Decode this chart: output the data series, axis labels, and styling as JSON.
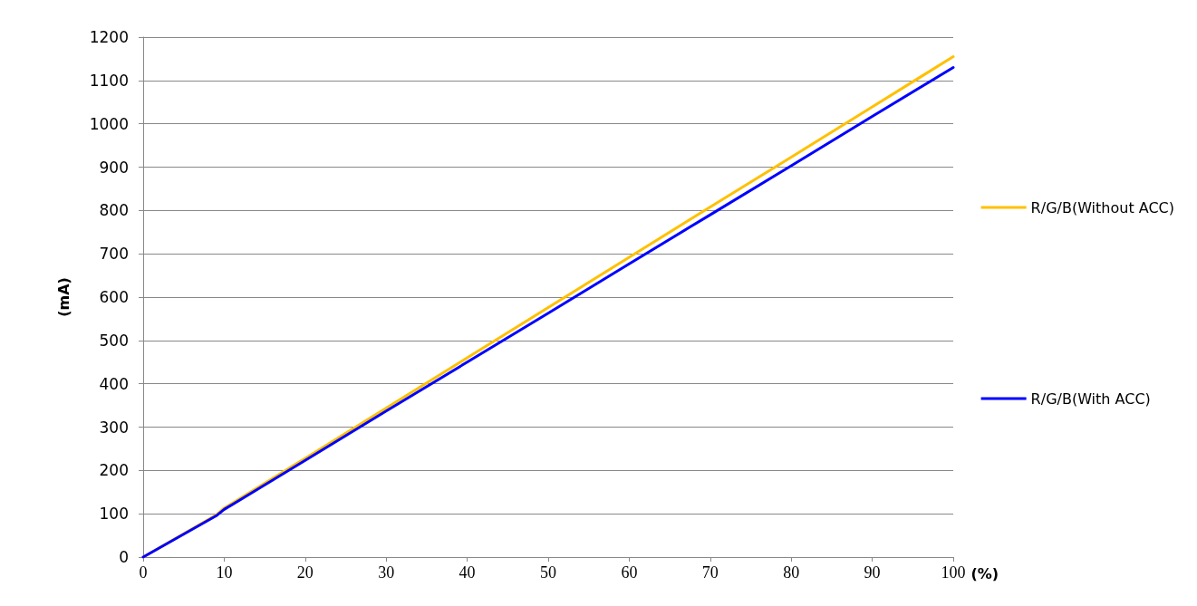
{
  "chart_data": {
    "type": "line",
    "xlabel": "(%)",
    "ylabel": "(mA)",
    "x": [
      0,
      9,
      10,
      20,
      30,
      40,
      50,
      60,
      70,
      80,
      90,
      100
    ],
    "series": [
      {
        "name": "R/G/B(Without ACC)",
        "color": "#ffc000",
        "values": [
          0,
          97,
          113,
          228,
          344,
          460,
          576,
          692,
          808,
          923,
          1039,
          1155
        ]
      },
      {
        "name": "R/G/B(With ACC)",
        "color": "#0000ff",
        "values": [
          0,
          95,
          110,
          223,
          337,
          450,
          563,
          677,
          790,
          903,
          1017,
          1130
        ]
      }
    ],
    "xlim": [
      0,
      100
    ],
    "xticks": [
      0,
      10,
      20,
      30,
      40,
      50,
      60,
      70,
      80,
      90,
      100
    ],
    "ylim": [
      0,
      1200
    ],
    "yticks": [
      0,
      100,
      200,
      300,
      400,
      500,
      600,
      700,
      800,
      900,
      1000,
      1100,
      1200
    ],
    "grid": "y",
    "legend": "right",
    "marker": "none",
    "line_style": "solid"
  }
}
